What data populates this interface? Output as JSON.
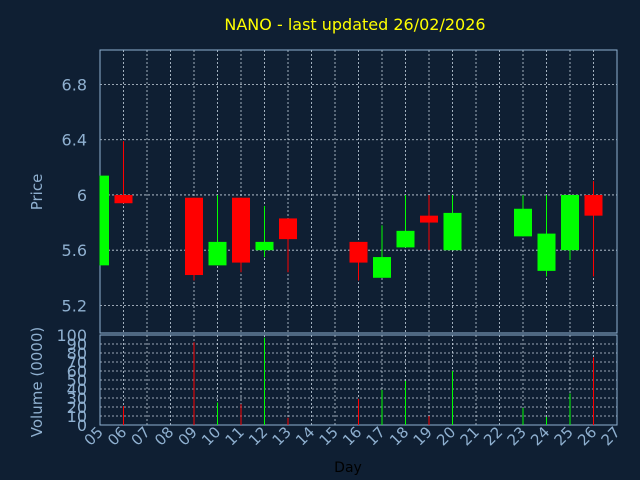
{
  "chart_data": [
    {
      "type": "candlestick",
      "title": "NANO - last updated 26/02/2026",
      "ylabel": "Price",
      "ylim": [
        5.0,
        7.05
      ],
      "yticks": [
        "5.2",
        "5.6",
        "6",
        "6.4",
        "6.8"
      ],
      "categories": [
        "05",
        "06",
        "07",
        "08",
        "09",
        "10",
        "11",
        "12",
        "13",
        "14",
        "15",
        "16",
        "17",
        "18",
        "19",
        "20",
        "21",
        "22",
        "23",
        "24",
        "25",
        "26",
        "27"
      ],
      "up_color": "#00ff00",
      "down_color": "#ff0000",
      "grid": true,
      "candles": [
        {
          "day": "05",
          "open": 5.49,
          "close": 6.14,
          "high": 6.14,
          "low": 5.49
        },
        {
          "day": "06",
          "open": 6.0,
          "close": 5.94,
          "high": 6.39,
          "low": 5.94
        },
        {
          "day": "09",
          "open": 5.98,
          "close": 5.42,
          "high": 5.98,
          "low": 5.38
        },
        {
          "day": "10",
          "open": 5.49,
          "close": 5.66,
          "high": 6.0,
          "low": 5.49
        },
        {
          "day": "11",
          "open": 5.98,
          "close": 5.51,
          "high": 5.98,
          "low": 5.44
        },
        {
          "day": "12",
          "open": 5.6,
          "close": 5.66,
          "high": 5.92,
          "low": 5.55
        },
        {
          "day": "13",
          "open": 5.83,
          "close": 5.68,
          "high": 5.83,
          "low": 5.44
        },
        {
          "day": "16",
          "open": 5.66,
          "close": 5.51,
          "high": 5.66,
          "low": 5.38
        },
        {
          "day": "17",
          "open": 5.4,
          "close": 5.55,
          "high": 5.78,
          "low": 5.4
        },
        {
          "day": "18",
          "open": 5.62,
          "close": 5.74,
          "high": 6.0,
          "low": 5.62
        },
        {
          "day": "19",
          "open": 5.85,
          "close": 5.8,
          "high": 6.0,
          "low": 5.6
        },
        {
          "day": "20",
          "open": 5.6,
          "close": 5.87,
          "high": 6.0,
          "low": 5.6
        },
        {
          "day": "23",
          "open": 5.7,
          "close": 5.9,
          "high": 6.0,
          "low": 5.7
        },
        {
          "day": "24",
          "open": 5.45,
          "close": 5.72,
          "high": 6.0,
          "low": 5.41
        },
        {
          "day": "25",
          "open": 5.6,
          "close": 6.0,
          "high": 6.0,
          "low": 5.53
        },
        {
          "day": "26",
          "open": 6.0,
          "close": 5.85,
          "high": 6.1,
          "low": 5.41
        }
      ]
    },
    {
      "type": "bar",
      "xlabel": "Day",
      "ylabel": "Volume (0000)",
      "ylim": [
        0,
        100
      ],
      "yticks": [
        "0",
        "10",
        "20",
        "30",
        "40",
        "50",
        "60",
        "70",
        "80",
        "90",
        "100"
      ],
      "categories": [
        "05",
        "06",
        "07",
        "08",
        "09",
        "10",
        "11",
        "12",
        "13",
        "14",
        "15",
        "16",
        "17",
        "18",
        "19",
        "20",
        "21",
        "22",
        "23",
        "24",
        "25",
        "26",
        "27"
      ],
      "bars": [
        {
          "day": "06",
          "value": 21,
          "direction": "down"
        },
        {
          "day": "09",
          "value": 92,
          "direction": "down"
        },
        {
          "day": "10",
          "value": 25,
          "direction": "up"
        },
        {
          "day": "11",
          "value": 23,
          "direction": "down"
        },
        {
          "day": "12",
          "value": 97,
          "direction": "up"
        },
        {
          "day": "13",
          "value": 8,
          "direction": "down"
        },
        {
          "day": "16",
          "value": 29,
          "direction": "down"
        },
        {
          "day": "17",
          "value": 39,
          "direction": "up"
        },
        {
          "day": "18",
          "value": 49,
          "direction": "up"
        },
        {
          "day": "19",
          "value": 10,
          "direction": "down"
        },
        {
          "day": "20",
          "value": 60,
          "direction": "up"
        },
        {
          "day": "23",
          "value": 19,
          "direction": "up"
        },
        {
          "day": "24",
          "value": 9,
          "direction": "up"
        },
        {
          "day": "25",
          "value": 35,
          "direction": "up"
        },
        {
          "day": "26",
          "value": 75,
          "direction": "down"
        }
      ]
    }
  ],
  "colors": {
    "background": "#0f1f33",
    "title": "#ffff00",
    "axis_text": "#8fb0d0",
    "grid": "#c8d4e0",
    "frame": "#8fb0d0"
  }
}
